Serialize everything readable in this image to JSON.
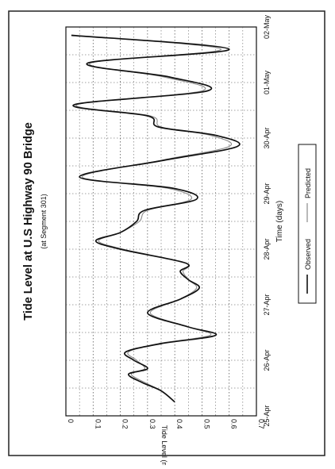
{
  "chart_data": {
    "type": "line",
    "title": "Tide Level at U.S Highway 90 Bridge",
    "subtitle": "(at Segment 301)",
    "xlabel": "Time (days)",
    "ylabel": "Tide Level (meter)",
    "x_tick_labels": [
      "25-Apr",
      "26-Apr",
      "27-Apr",
      "28-Apr",
      "29-Apr",
      "30-Apr",
      "01-May",
      "02-May"
    ],
    "y_tick_labels": [
      "0",
      "0.1",
      "0.2",
      "0.3",
      "0.4",
      "0.5",
      "0.6",
      "0.7"
    ],
    "xlim": [
      0,
      7
    ],
    "ylim": [
      0,
      0.7
    ],
    "x_unit": "days after 25-Apr",
    "grid": true,
    "legend_position": "bottom",
    "colors": {
      "observed": "#111111",
      "predicted": "#8a8a8a",
      "grid": "#444444"
    },
    "series": [
      {
        "name": "Observed",
        "x": [
          0.25,
          0.45,
          0.6,
          0.75,
          0.85,
          1.0,
          1.15,
          1.3,
          1.45,
          1.6,
          1.85,
          2.1,
          2.3,
          2.45,
          2.6,
          2.75,
          3.0,
          3.15,
          3.3,
          3.5,
          3.7,
          3.9,
          4.1,
          4.3,
          4.6,
          4.85,
          5.05,
          5.2,
          5.4,
          5.6,
          5.85,
          6.1,
          6.35,
          6.6,
          6.85
        ],
        "y": [
          0.4,
          0.35,
          0.28,
          0.23,
          0.3,
          0.25,
          0.22,
          0.35,
          0.55,
          0.45,
          0.3,
          0.42,
          0.49,
          0.45,
          0.42,
          0.44,
          0.2,
          0.11,
          0.2,
          0.26,
          0.29,
          0.48,
          0.39,
          0.05,
          0.36,
          0.63,
          0.55,
          0.34,
          0.3,
          0.03,
          0.52,
          0.38,
          0.08,
          0.6,
          0.02
        ]
      },
      {
        "name": "Predicted",
        "x": [
          0.25,
          0.45,
          0.6,
          0.75,
          0.85,
          1.0,
          1.15,
          1.3,
          1.45,
          1.6,
          1.85,
          2.1,
          2.3,
          2.45,
          2.6,
          2.75,
          3.0,
          3.15,
          3.3,
          3.5,
          3.7,
          3.9,
          4.1,
          4.3,
          4.6,
          4.85,
          5.05,
          5.2,
          5.4,
          5.6,
          5.85,
          6.1,
          6.35,
          6.6,
          6.85
        ],
        "y": [
          0.4,
          0.35,
          0.29,
          0.24,
          0.29,
          0.26,
          0.23,
          0.34,
          0.53,
          0.45,
          0.31,
          0.42,
          0.48,
          0.45,
          0.43,
          0.44,
          0.21,
          0.12,
          0.2,
          0.27,
          0.3,
          0.46,
          0.37,
          0.06,
          0.35,
          0.6,
          0.53,
          0.35,
          0.31,
          0.04,
          0.5,
          0.36,
          0.09,
          0.57,
          0.02
        ]
      }
    ]
  }
}
